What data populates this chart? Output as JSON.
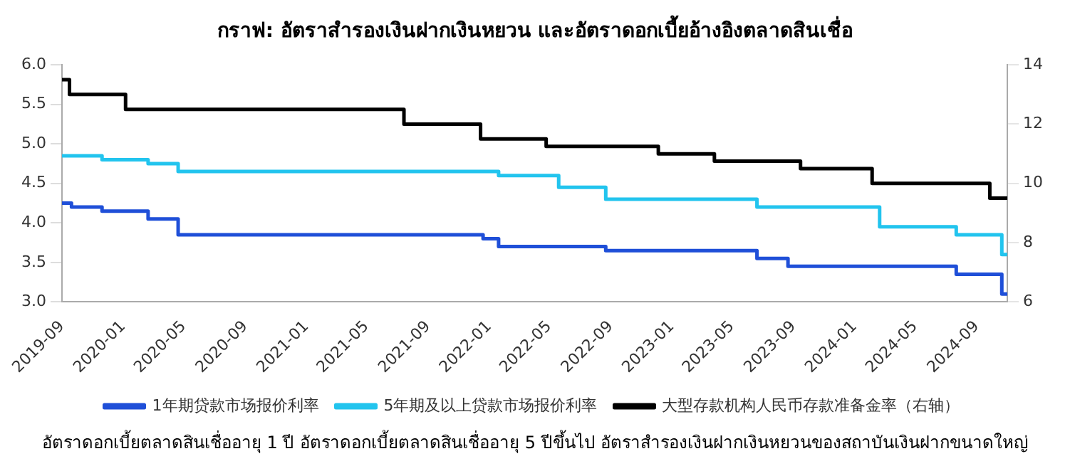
{
  "chart_data": {
    "type": "step",
    "title": "กราฟ: อัตราสำรองเงินฝากเงินหยวน และอัตราดอกเบี้ยอ้างอิงตลาดสินเชื่อ",
    "xlim": [
      "2019-09",
      "2024-11"
    ],
    "xticks": [
      "2019-09",
      "2020-01",
      "2020-05",
      "2020-09",
      "2021-01",
      "2021-05",
      "2021-09",
      "2022-01",
      "2022-05",
      "2022-09",
      "2023-01",
      "2023-05",
      "2023-09",
      "2024-01",
      "2024-05",
      "2024-09"
    ],
    "ylim": [
      3,
      6
    ],
    "yticks": [
      {
        "value": 3,
        "label": "3.0"
      },
      3.5,
      {
        "value": 4,
        "label": "4.0"
      },
      4.5,
      {
        "value": 5,
        "label": "5.0"
      },
      5.5,
      {
        "value": 6,
        "label": "6.0"
      }
    ],
    "y2lim": [
      6,
      14
    ],
    "y2ticks": [
      6,
      8,
      10,
      12,
      14
    ],
    "grid": false,
    "legend": "bottom",
    "marker": "none",
    "line_style": "solid",
    "series": [
      {
        "name": "1年期贷款市场报价利率",
        "color": "#1f4fd8",
        "x": [
          "2019-09-01",
          "2019-09-20",
          "2019-11-20",
          "2020-02-20",
          "2020-04-20",
          "2021-12-20",
          "2022-01-20",
          "2022-08-22",
          "2023-06-20",
          "2023-08-21",
          "2024-07-22",
          "2024-10-21",
          "2024-11-01"
        ],
        "values": [
          4.25,
          4.2,
          4.15,
          4.05,
          3.85,
          3.8,
          3.7,
          3.65,
          3.55,
          3.45,
          3.35,
          3.1,
          3.1
        ]
      },
      {
        "name": "5年期及以上贷款市场报价利率",
        "color": "#22c4ee",
        "x": [
          "2019-09-01",
          "2019-11-20",
          "2020-02-20",
          "2020-04-20",
          "2022-01-20",
          "2022-05-20",
          "2022-08-22",
          "2023-06-20",
          "2024-02-20",
          "2024-07-22",
          "2024-10-21",
          "2024-11-01"
        ],
        "values": [
          4.85,
          4.8,
          4.75,
          4.65,
          4.6,
          4.45,
          4.3,
          4.2,
          3.95,
          3.85,
          3.6,
          3.6
        ]
      },
      {
        "name": "大型存款机构人民币存款准备金率（右轴）",
        "color": "#000000",
        "axis": "y2",
        "x": [
          "2019-09-01",
          "2019-09-16",
          "2020-01-06",
          "2021-07-15",
          "2021-12-15",
          "2022-04-25",
          "2022-12-05",
          "2023-03-27",
          "2023-09-15",
          "2024-02-05",
          "2024-09-27",
          "2024-11-01"
        ],
        "values": [
          13.5,
          13,
          12.5,
          12,
          11.5,
          11.25,
          11,
          10.75,
          10.5,
          10,
          9.5,
          9.5
        ]
      }
    ],
    "annotations": [
      "อัตราดอกเบี้ยตลาดสินเชื่ออายุ 1 ปี   อัตราดอกเบี้ยตลาดสินเชื่ออายุ 5 ปีขึ้นไป   อัตราสำรองเงินฝากเงินหยวนของสถาบันเงินฝากขนาดใหญ่"
    ]
  }
}
